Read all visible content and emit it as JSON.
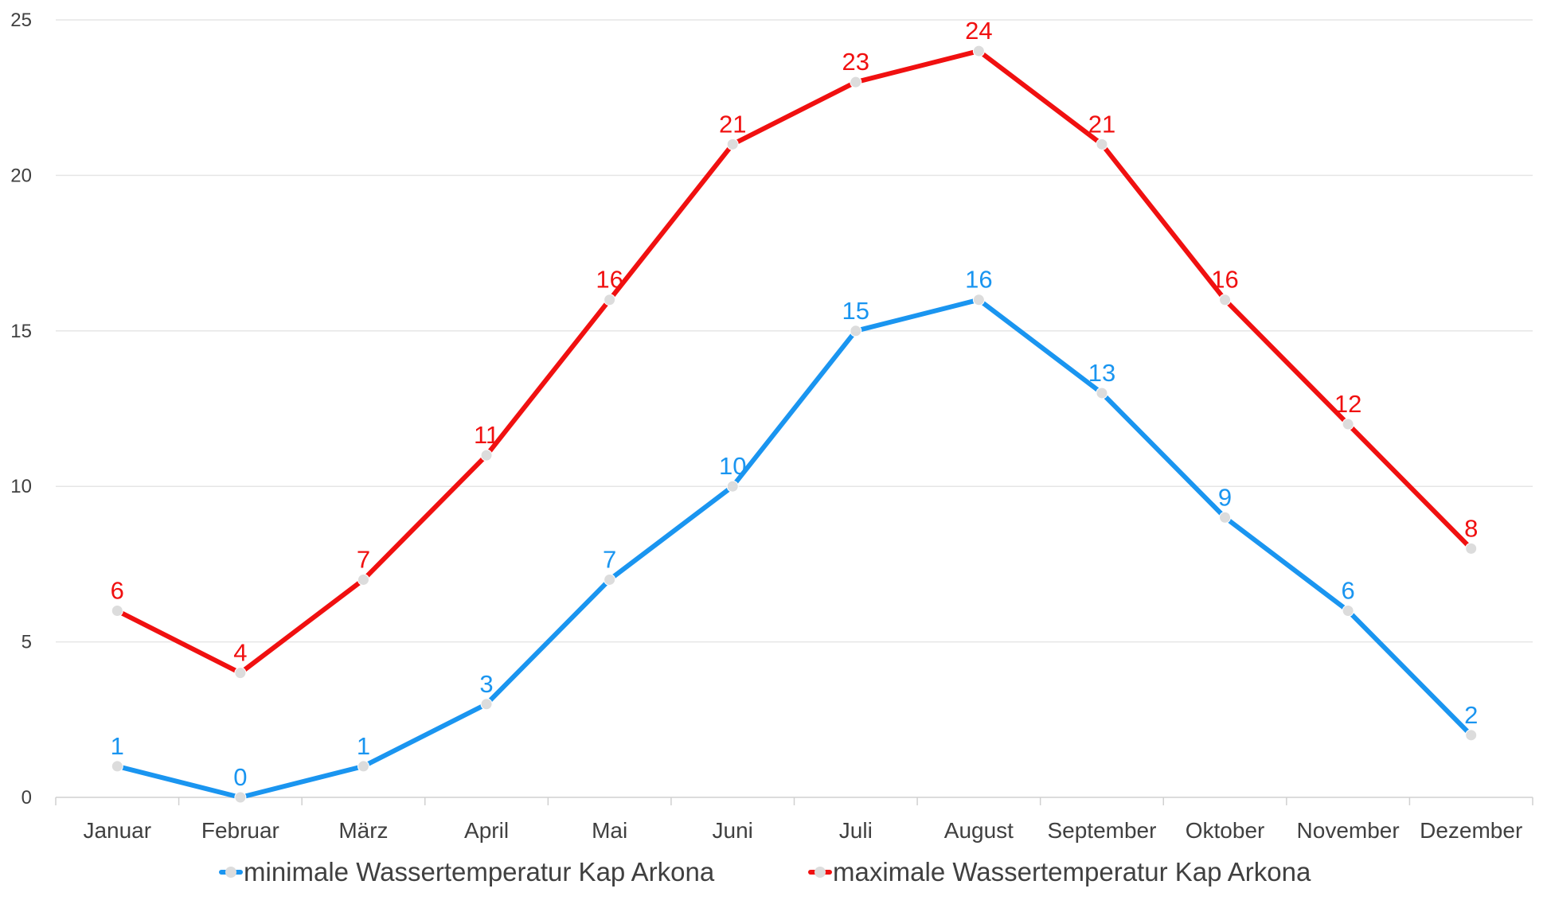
{
  "chart_data": {
    "type": "line",
    "title": "",
    "xlabel": "",
    "ylabel": "",
    "categories": [
      "Januar",
      "Februar",
      "März",
      "April",
      "Mai",
      "Juni",
      "Juli",
      "August",
      "September",
      "Oktober",
      "November",
      "Dezember"
    ],
    "ylim": [
      0,
      25
    ],
    "yticks": [
      "0",
      "5",
      "10",
      "15",
      "20",
      "25"
    ],
    "grid": true,
    "legend_position": "bottom",
    "series": [
      {
        "name": "minimale Wassertemperatur Kap Arkona",
        "color": "#1a95f0",
        "values": [
          1,
          0,
          1,
          3,
          7,
          10,
          15,
          16,
          13,
          9,
          6,
          2
        ]
      },
      {
        "name": "maximale Wassertemperatur Kap Arkona",
        "color": "#f01010",
        "values": [
          6,
          4,
          7,
          11,
          16,
          21,
          23,
          24,
          21,
          16,
          12,
          8
        ]
      }
    ],
    "marker_color": "#dcdcdc",
    "grid_color": "#e6e6e6"
  }
}
